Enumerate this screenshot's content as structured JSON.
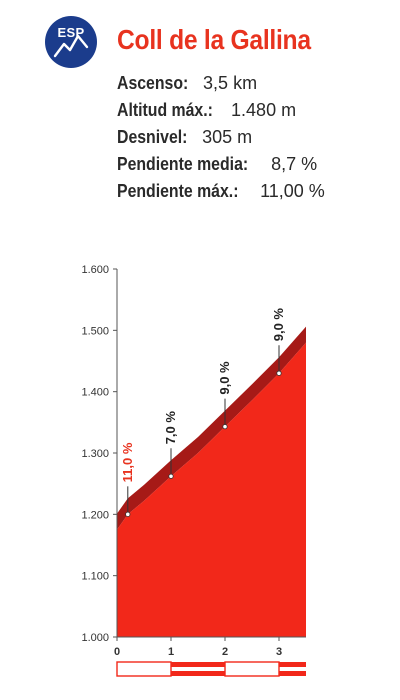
{
  "header": {
    "badge_label": "ESP",
    "title": "Coll de la Gallina",
    "stats": [
      {
        "label": "Ascenso:",
        "value": "3,5 km"
      },
      {
        "label": "Altitud máx.:",
        "value": "1.480 m"
      },
      {
        "label": "Desnivel:",
        "value": "305 m"
      },
      {
        "label": "Pendiente media:",
        "value": "8,7 %"
      },
      {
        "label": "Pendiente máx.:",
        "value": "11,00 %"
      }
    ]
  },
  "colors": {
    "accent_red": "#e8331f",
    "profile_red": "#f2281a",
    "profile_dark": "#a61a17",
    "badge_blue": "#1b3c8c"
  },
  "chart_data": {
    "type": "area",
    "xlabel": "",
    "ylabel": "",
    "xlim": [
      0,
      3.5
    ],
    "ylim": [
      1000,
      1600
    ],
    "y_ticks": [
      1000,
      1100,
      1200,
      1300,
      1400,
      1500,
      1600
    ],
    "y_tick_labels": [
      "1.000",
      "1.100",
      "1.200",
      "1.300",
      "1.400",
      "1.500",
      "1.600"
    ],
    "x_ticks": [
      0,
      1,
      2,
      3
    ],
    "x_tick_labels": [
      "0",
      "1",
      "2",
      "3"
    ],
    "profile": {
      "x": [
        0,
        0.2,
        0.5,
        1.0,
        1.5,
        2.0,
        2.5,
        3.0,
        3.5
      ],
      "y": [
        1175,
        1200,
        1222,
        1262,
        1300,
        1343,
        1386,
        1430,
        1480
      ]
    },
    "grades": [
      {
        "km": 0.2,
        "elevation": 1200,
        "label": "11,0 %",
        "highlight": true
      },
      {
        "km": 1.0,
        "elevation": 1262,
        "label": "7,0 %",
        "highlight": false
      },
      {
        "km": 2.0,
        "elevation": 1343,
        "label": "9,0 %",
        "highlight": false
      },
      {
        "km": 3.0,
        "elevation": 1430,
        "label": "9,0 %",
        "highlight": false
      }
    ],
    "distance_bar_segments": [
      {
        "start": 0,
        "end": 1,
        "filled": false
      },
      {
        "start": 1,
        "end": 2,
        "filled": true
      },
      {
        "start": 2,
        "end": 3,
        "filled": false
      },
      {
        "start": 3,
        "end": 3.5,
        "filled": true
      }
    ]
  }
}
